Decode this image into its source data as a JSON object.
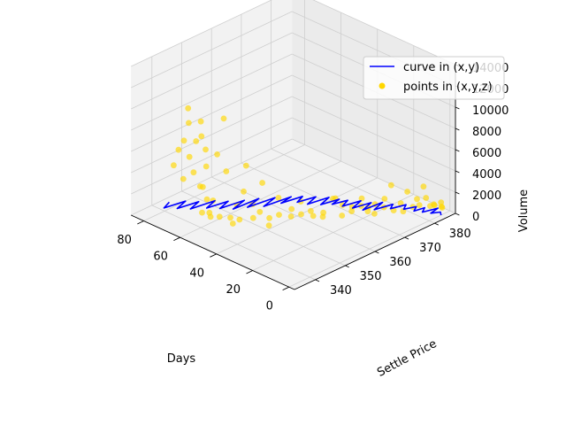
{
  "chart_data": {
    "type": "3d-line-scatter",
    "xlabel": "Days",
    "ylabel": "Settle Price",
    "zlabel": "Volume",
    "x_ticks": [
      0,
      20,
      40,
      60,
      80
    ],
    "y_ticks": [
      340,
      350,
      360,
      370,
      380
    ],
    "z_ticks": [
      0,
      2000,
      4000,
      6000,
      8000,
      10000,
      12000,
      14000
    ],
    "xlim": [
      -3,
      87
    ],
    "ylim": [
      333,
      387
    ],
    "zlim": [
      0,
      14000
    ],
    "grid": true,
    "legend_position": "top-right",
    "colors": {
      "line": "#0000ff",
      "points": "#ffd700"
    },
    "series": [
      {
        "name": "curve in (x,y)",
        "kind": "line",
        "x": [
          0,
          2,
          4,
          5,
          6,
          7,
          9,
          10,
          12,
          14,
          16,
          18,
          20,
          22,
          24,
          25,
          27,
          29,
          31,
          33,
          35,
          37,
          38,
          40,
          42,
          44,
          46,
          48,
          50,
          52,
          53,
          55,
          57,
          59,
          61,
          62,
          64,
          66,
          68,
          70,
          72,
          74,
          76,
          78,
          80,
          82,
          84
        ],
        "y": [
          384,
          385,
          383,
          386,
          384,
          382,
          384,
          381,
          383,
          380,
          382,
          378,
          380,
          375,
          379,
          373,
          377,
          372,
          376,
          371,
          374,
          370,
          373,
          368,
          372,
          366,
          370,
          365,
          368,
          362,
          366,
          358,
          363,
          355,
          360,
          352,
          357,
          350,
          354,
          348,
          352,
          345,
          349,
          343,
          347,
          341,
          344
        ]
      },
      {
        "name": "points in (x,y,z)",
        "kind": "scatter",
        "x": [
          0,
          1,
          2,
          3,
          4,
          5,
          6,
          7,
          8,
          9,
          10,
          11,
          12,
          13,
          14,
          15,
          16,
          17,
          18,
          19,
          20,
          21,
          22,
          23,
          24,
          25,
          26,
          27,
          28,
          29,
          30,
          31,
          32,
          33,
          34,
          35,
          36,
          37,
          38,
          39,
          40,
          41,
          42,
          43,
          44,
          45,
          46,
          47,
          48,
          49,
          50,
          51,
          52,
          53,
          54,
          55,
          56,
          57,
          58,
          59,
          60,
          61,
          62,
          63,
          64,
          65,
          66,
          67,
          68,
          69,
          70,
          71,
          72,
          73,
          74,
          75
        ],
        "y": [
          384,
          385,
          383,
          386,
          384,
          382,
          384,
          381,
          383,
          380,
          382,
          378,
          380,
          376,
          379,
          374,
          377,
          372,
          376,
          371,
          374,
          370,
          373,
          368,
          372,
          366,
          370,
          365,
          368,
          362,
          366,
          360,
          364,
          357,
          361,
          355,
          359,
          352,
          357,
          350,
          354,
          349,
          352,
          347,
          350,
          346,
          349,
          345,
          347,
          344,
          346,
          343,
          345,
          342,
          344,
          341,
          343,
          341,
          342,
          340,
          342,
          341,
          343,
          342,
          344,
          343,
          342,
          344,
          341,
          343,
          342,
          341,
          343,
          342,
          341,
          340
        ],
        "z": [
          1200,
          500,
          900,
          300,
          700,
          1500,
          400,
          800,
          2200,
          600,
          1000,
          300,
          1800,
          500,
          700,
          900,
          2500,
          400,
          1200,
          600,
          800,
          1100,
          500,
          700,
          1300,
          400,
          600,
          2000,
          900,
          500,
          1600,
          700,
          400,
          2300,
          800,
          1000,
          600,
          3000,
          1200,
          500,
          900,
          4500,
          700,
          2600,
          1400,
          6200,
          800,
          1100,
          3400,
          700,
          2100,
          5600,
          900,
          1300,
          10200,
          2800,
          6800,
          1500,
          900,
          3900,
          2400,
          1200,
          5200,
          8100,
          6500,
          9200,
          7400,
          2800,
          5900,
          4100,
          8800,
          7200,
          9900,
          3300,
          6100,
          4700
        ]
      }
    ]
  }
}
